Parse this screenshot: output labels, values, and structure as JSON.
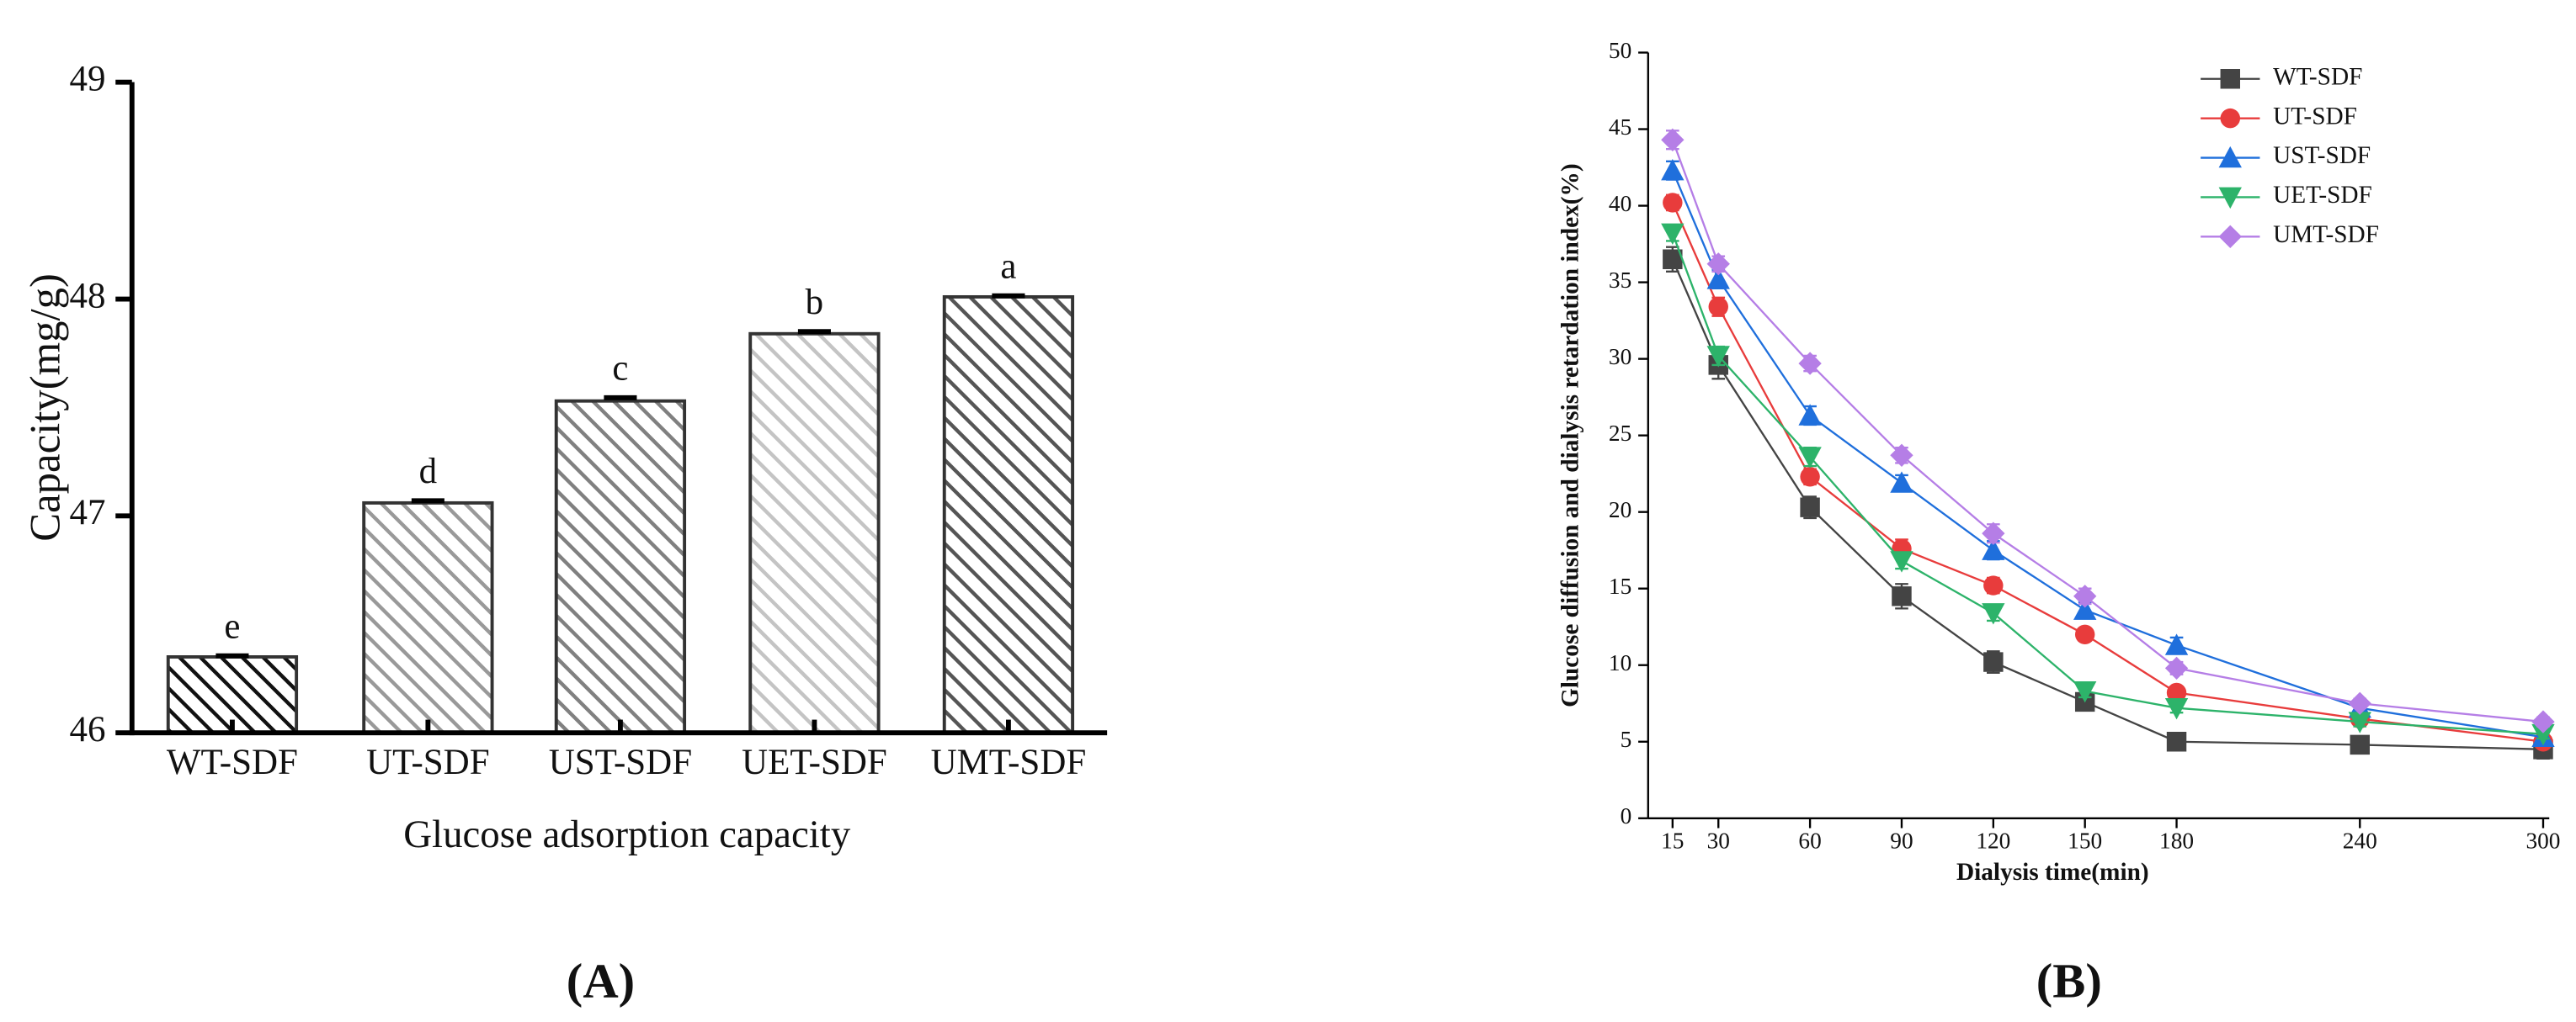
{
  "chart_data": [
    {
      "type": "bar",
      "panel_label": "(A)",
      "xlabel": "Glucose adsorption capacity",
      "ylabel": "Capacity(mg/g)",
      "categories": [
        "WT-SDF",
        "UT-SDF",
        "UST-SDF",
        "UET-SDF",
        "UMT-SDF"
      ],
      "values": [
        46.35,
        47.06,
        47.53,
        47.84,
        48.01
      ],
      "errors": [
        0.005,
        0.01,
        0.015,
        0.01,
        0.005
      ],
      "annotations": [
        "e",
        "d",
        "c",
        "b",
        "a"
      ],
      "colors": [
        "#111111",
        "#999999",
        "#808080",
        "#c4c4c4",
        "#555555"
      ],
      "ylim": [
        46,
        49
      ],
      "yticks": [
        46,
        47,
        48,
        49
      ]
    },
    {
      "type": "line",
      "panel_label": "(B)",
      "xlabel": "Dialysis time(min)",
      "ylabel": "Glucose diffusion and dialysis retardation index(%)",
      "x": [
        15,
        30,
        60,
        90,
        120,
        150,
        180,
        240,
        300
      ],
      "xlim": [
        7,
        302
      ],
      "xticks": [
        15,
        30,
        60,
        90,
        120,
        150,
        180,
        240,
        300
      ],
      "ylim": [
        0,
        50
      ],
      "yticks": [
        0,
        5,
        10,
        15,
        20,
        25,
        30,
        35,
        40,
        45,
        50
      ],
      "legend": "upper right",
      "series": [
        {
          "name": "WT-SDF",
          "color": "#444444",
          "marker": "square",
          "values": [
            36.5,
            29.6,
            20.3,
            14.5,
            10.2,
            7.6,
            5.0,
            4.8,
            4.5
          ],
          "errors": [
            0.8,
            0.9,
            0.7,
            0.8,
            0.7,
            0.5,
            0.3,
            0.3,
            0.6
          ]
        },
        {
          "name": "UT-SDF",
          "color": "#e83c3c",
          "marker": "circle",
          "values": [
            40.2,
            33.4,
            22.3,
            17.6,
            15.2,
            12.0,
            8.2,
            6.5,
            5.0
          ],
          "errors": [
            0.5,
            0.6,
            0.5,
            0.6,
            0.5,
            0.4,
            0.4,
            0.3,
            0.3
          ]
        },
        {
          "name": "UST-SDF",
          "color": "#1f6fdc",
          "marker": "triangle-up",
          "values": [
            42.3,
            35.2,
            26.3,
            21.9,
            17.5,
            13.6,
            11.3,
            7.2,
            5.3
          ],
          "errors": [
            0.6,
            0.6,
            0.6,
            0.5,
            0.6,
            0.5,
            0.5,
            0.3,
            0.3
          ]
        },
        {
          "name": "UET-SDF",
          "color": "#2db36a",
          "marker": "triangle-down",
          "values": [
            38.2,
            30.2,
            23.6,
            16.8,
            13.4,
            8.3,
            7.2,
            6.3,
            5.5
          ],
          "errors": [
            0.5,
            0.6,
            0.6,
            0.5,
            0.5,
            0.4,
            0.3,
            0.3,
            0.3
          ]
        },
        {
          "name": "UMT-SDF",
          "color": "#b57ee6",
          "marker": "diamond",
          "values": [
            44.3,
            36.2,
            29.7,
            23.7,
            18.6,
            14.5,
            9.8,
            7.5,
            6.3
          ],
          "errors": [
            0.6,
            0.5,
            0.5,
            0.5,
            0.6,
            0.5,
            0.4,
            0.3,
            0.3
          ]
        }
      ]
    }
  ]
}
